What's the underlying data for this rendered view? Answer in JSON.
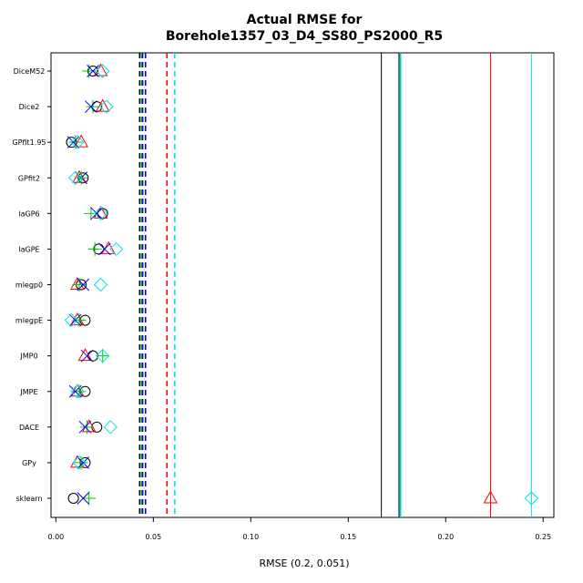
{
  "chart_data": {
    "type": "scatter",
    "title_line1": "Actual RMSE for",
    "title_line2": "Borehole1357_03_D4_SS80_PS2000_R5",
    "xlabel": "RMSE (0.2, 0.051)",
    "xlim": [
      -0.0025,
      0.2555
    ],
    "xticks": [
      0.0,
      0.05,
      0.1,
      0.15,
      0.2,
      0.25
    ],
    "xtick_labels": [
      "0.00",
      "0.05",
      "0.10",
      "0.15",
      "0.20",
      "0.25"
    ],
    "categories": [
      "DiceM52",
      "Dice2",
      "GPfit1.95",
      "GPfit2",
      "laGP6",
      "laGPE",
      "mlegp0",
      "mlegpE",
      "JMP0",
      "JMPE",
      "DACE",
      "GPy",
      "sklearn"
    ],
    "series": [
      {
        "color": "#000000",
        "marker": "circle",
        "values": [
          0.019,
          0.021,
          0.008,
          0.014,
          0.024,
          0.022,
          0.013,
          0.015,
          0.019,
          0.015,
          0.021,
          0.015,
          0.009
        ]
      },
      {
        "color": "#ff0000",
        "marker": "triangle",
        "values": [
          0.023,
          0.024,
          0.013,
          0.012,
          0.023,
          0.027,
          0.011,
          0.011,
          0.015,
          0.011,
          0.017,
          0.011,
          0.223
        ]
      },
      {
        "color": "#00cc00",
        "marker": "plus",
        "values": [
          0.017,
          0.019,
          0.01,
          0.013,
          0.018,
          0.02,
          0.012,
          0.012,
          0.024,
          0.012,
          0.016,
          0.013,
          0.017
        ]
      },
      {
        "color": "#0000ff",
        "marker": "cross",
        "values": [
          0.019,
          0.018,
          0.009,
          0.013,
          0.021,
          0.025,
          0.014,
          0.01,
          0.016,
          0.01,
          0.015,
          0.014,
          0.014
        ]
      },
      {
        "color": "#00e5e5",
        "marker": "diamond",
        "values": [
          0.024,
          0.026,
          0.011,
          0.01,
          0.023,
          0.031,
          0.023,
          0.008,
          0.024,
          0.011,
          0.028,
          0.012,
          0.244
        ]
      }
    ],
    "dashed_lines": [
      {
        "x": 0.043,
        "color": "#000000"
      },
      {
        "x": 0.044,
        "color": "#00cc00"
      },
      {
        "x": 0.0445,
        "color": "#0000ff"
      },
      {
        "x": 0.046,
        "color": "#0000ff"
      },
      {
        "x": 0.057,
        "color": "#ff0000"
      },
      {
        "x": 0.061,
        "color": "#00e5e5"
      }
    ],
    "solid_lines": [
      {
        "x": 0.167,
        "color": "#000000"
      },
      {
        "x": 0.176,
        "color": "#0000ff"
      },
      {
        "x": 0.1765,
        "color": "#00cc00"
      },
      {
        "x": 0.177,
        "color": "#00e5e5"
      },
      {
        "x": 0.223,
        "color": "#ff0000"
      },
      {
        "x": 0.244,
        "color": "#00e5e5"
      }
    ]
  }
}
